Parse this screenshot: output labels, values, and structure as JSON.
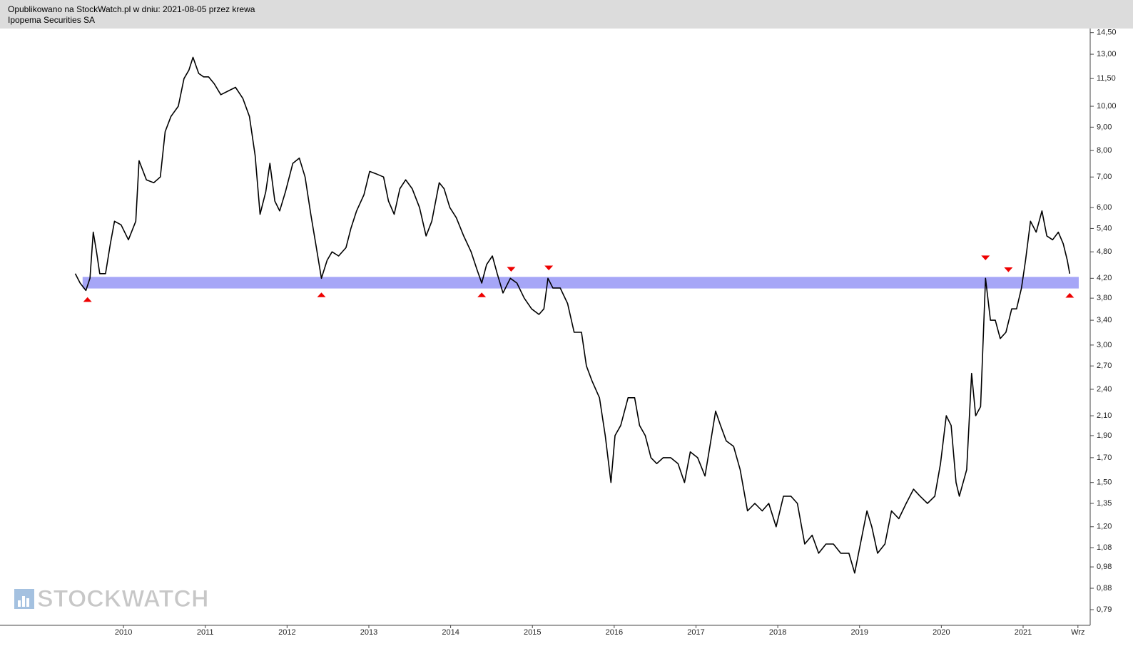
{
  "header": {
    "line1": "Opublikowano na StockWatch.pl w dniu: 2021-08-05 przez krewa",
    "line2": "Ipopema Securities SA"
  },
  "watermark": "STOCKWATCH",
  "chart_data": {
    "type": "line",
    "log_scale": true,
    "color": "#000000",
    "xlim": [
      2008.49,
      2021.82
    ],
    "ylim": [
      0.73,
      14.8
    ],
    "xticks": [
      2010,
      2011,
      2012,
      2013,
      2014,
      2015,
      2016,
      2017,
      2018,
      2019,
      2020,
      2021,
      {
        "value": 2021.67,
        "label": "Wrz"
      }
    ],
    "yticks": [
      {
        "value": 14.5,
        "label": "14,50"
      },
      {
        "value": 13,
        "label": "13,00"
      },
      {
        "value": 11.5,
        "label": "11,50"
      },
      {
        "value": 10,
        "label": "10,00"
      },
      {
        "value": 9,
        "label": "9,00"
      },
      {
        "value": 8,
        "label": "8,00"
      },
      {
        "value": 7,
        "label": "7,00"
      },
      {
        "value": 6,
        "label": "6,00"
      },
      {
        "value": 5.4,
        "label": "5,40"
      },
      {
        "value": 4.8,
        "label": "4,80"
      },
      {
        "value": 4.2,
        "label": "4,20"
      },
      {
        "value": 3.8,
        "label": "3,80"
      },
      {
        "value": 3.4,
        "label": "3,40"
      },
      {
        "value": 3,
        "label": "3,00"
      },
      {
        "value": 2.7,
        "label": "2,70"
      },
      {
        "value": 2.4,
        "label": "2,40"
      },
      {
        "value": 2.1,
        "label": "2,10"
      },
      {
        "value": 1.9,
        "label": "1,90"
      },
      {
        "value": 1.7,
        "label": "1,70"
      },
      {
        "value": 1.5,
        "label": "1,50"
      },
      {
        "value": 1.35,
        "label": "1,35"
      },
      {
        "value": 1.2,
        "label": "1,20"
      },
      {
        "value": 1.08,
        "label": "1,08"
      },
      {
        "value": 0.98,
        "label": "0,98"
      },
      {
        "value": 0.88,
        "label": "0,88"
      },
      {
        "value": 0.79,
        "label": "0,79"
      }
    ],
    "x": [
      2009.41,
      2009.47,
      2009.54,
      2009.59,
      2009.63,
      2009.67,
      2009.71,
      2009.78,
      2009.84,
      2009.89,
      2009.97,
      2010.06,
      2010.15,
      2010.19,
      2010.28,
      2010.37,
      2010.45,
      2010.51,
      2010.58,
      2010.67,
      2010.74,
      2010.8,
      2010.85,
      2010.92,
      2010.98,
      2011.04,
      2011.11,
      2011.19,
      2011.28,
      2011.37,
      2011.46,
      2011.54,
      2011.61,
      2011.67,
      2011.74,
      2011.79,
      2011.85,
      2011.91,
      2011.98,
      2012.07,
      2012.15,
      2012.22,
      2012.29,
      2012.35,
      2012.42,
      2012.49,
      2012.55,
      2012.63,
      2012.72,
      2012.78,
      2012.85,
      2012.94,
      2013.01,
      2013.1,
      2013.18,
      2013.24,
      2013.31,
      2013.38,
      2013.45,
      2013.53,
      2013.62,
      2013.7,
      2013.77,
      2013.86,
      2013.92,
      2013.99,
      2014.07,
      2014.16,
      2014.25,
      2014.32,
      2014.38,
      2014.44,
      2014.51,
      2014.57,
      2014.64,
      2014.73,
      2014.81,
      2014.9,
      2014.99,
      2015.08,
      2015.14,
      2015.19,
      2015.25,
      2015.34,
      2015.43,
      2015.51,
      2015.6,
      2015.66,
      2015.73,
      2015.82,
      2015.89,
      2015.96,
      2016.01,
      2016.08,
      2016.17,
      2016.25,
      2016.31,
      2016.38,
      2016.45,
      2016.52,
      2016.6,
      2016.69,
      2016.78,
      2016.86,
      2016.93,
      2017.02,
      2017.11,
      2017.17,
      2017.24,
      2017.3,
      2017.37,
      2017.46,
      2017.54,
      2017.63,
      2017.72,
      2017.81,
      2017.89,
      2017.98,
      2018.07,
      2018.16,
      2018.24,
      2018.33,
      2018.42,
      2018.5,
      2018.59,
      2018.68,
      2018.77,
      2018.87,
      2018.94,
      2019.01,
      2019.09,
      2019.15,
      2019.22,
      2019.31,
      2019.39,
      2019.48,
      2019.57,
      2019.66,
      2019.74,
      2019.83,
      2019.92,
      2019.99,
      2020.06,
      2020.12,
      2020.18,
      2020.22,
      2020.31,
      2020.37,
      2020.42,
      2020.48,
      2020.54,
      2020.6,
      2020.66,
      2020.72,
      2020.79,
      2020.86,
      2020.92,
      2020.98,
      2021.03,
      2021.09,
      2021.16,
      2021.23,
      2021.29,
      2021.36,
      2021.43,
      2021.49,
      2021.54,
      2021.57
    ],
    "values": [
      4.3,
      4.1,
      3.95,
      4.2,
      5.3,
      4.8,
      4.3,
      4.3,
      5.0,
      5.6,
      5.5,
      5.1,
      5.6,
      7.6,
      6.9,
      6.8,
      7.0,
      8.8,
      9.5,
      10.0,
      11.5,
      12.0,
      12.8,
      11.8,
      11.6,
      11.6,
      11.2,
      10.6,
      10.8,
      11.0,
      10.4,
      9.5,
      7.8,
      5.8,
      6.5,
      7.5,
      6.2,
      5.9,
      6.5,
      7.5,
      7.7,
      7.0,
      5.8,
      5.0,
      4.2,
      4.6,
      4.8,
      4.7,
      4.9,
      5.4,
      5.9,
      6.4,
      7.2,
      7.1,
      7.0,
      6.2,
      5.8,
      6.6,
      6.9,
      6.6,
      6.0,
      5.2,
      5.6,
      6.8,
      6.6,
      6.0,
      5.7,
      5.2,
      4.8,
      4.4,
      4.1,
      4.5,
      4.7,
      4.3,
      3.9,
      4.2,
      4.1,
      3.8,
      3.6,
      3.5,
      3.6,
      4.2,
      4.0,
      4.0,
      3.7,
      3.2,
      3.2,
      2.7,
      2.5,
      2.3,
      1.9,
      1.5,
      1.9,
      2.0,
      2.3,
      2.3,
      2.0,
      1.9,
      1.7,
      1.65,
      1.7,
      1.7,
      1.65,
      1.5,
      1.75,
      1.7,
      1.55,
      1.8,
      2.15,
      2.0,
      1.85,
      1.8,
      1.6,
      1.3,
      1.35,
      1.3,
      1.35,
      1.2,
      1.4,
      1.4,
      1.35,
      1.1,
      1.15,
      1.05,
      1.1,
      1.1,
      1.05,
      1.05,
      0.95,
      1.1,
      1.3,
      1.2,
      1.05,
      1.1,
      1.3,
      1.25,
      1.35,
      1.45,
      1.4,
      1.35,
      1.4,
      1.65,
      2.1,
      2.0,
      1.5,
      1.4,
      1.6,
      2.6,
      2.1,
      2.2,
      4.2,
      3.4,
      3.4,
      3.1,
      3.2,
      3.6,
      3.6,
      4.0,
      4.6,
      5.6,
      5.3,
      5.9,
      5.2,
      5.1,
      5.3,
      5.0,
      4.6,
      4.3
    ],
    "band": {
      "low": 3.99,
      "high": 4.23,
      "start": 2009.5,
      "end": 2021.68,
      "color": "#a6a6f7"
    },
    "marker_color": "#ee0000",
    "markers": [
      {
        "x": 2009.56,
        "y": 3.77,
        "direction": "up"
      },
      {
        "x": 2012.42,
        "y": 3.86,
        "direction": "up"
      },
      {
        "x": 2014.38,
        "y": 3.86,
        "direction": "up"
      },
      {
        "x": 2021.57,
        "y": 3.85,
        "direction": "up"
      },
      {
        "x": 2014.74,
        "y": 4.4,
        "direction": "down"
      },
      {
        "x": 2015.2,
        "y": 4.43,
        "direction": "down"
      },
      {
        "x": 2020.54,
        "y": 4.66,
        "direction": "down"
      },
      {
        "x": 2020.82,
        "y": 4.39,
        "direction": "down"
      }
    ]
  }
}
